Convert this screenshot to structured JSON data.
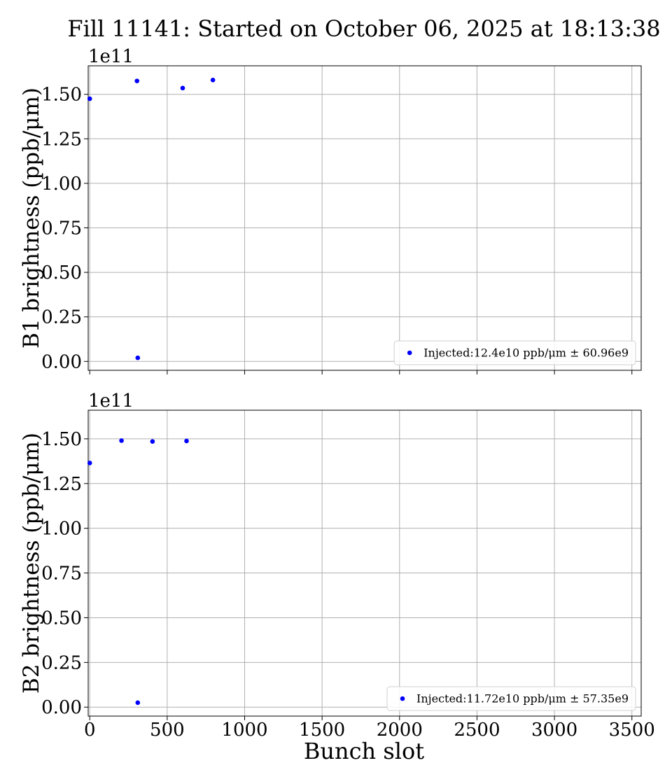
{
  "title": "Fill 11141: Started on October 06, 2025 at 18:13:38",
  "xlabel": "Bunch slot",
  "colors": {
    "marker": "#0000ff",
    "grid": "#b0b0b0",
    "axis": "#000000"
  },
  "chart_data": [
    {
      "type": "scatter",
      "ylabel": "B1 brightness (ppb/μm)",
      "offset_label": "1e11",
      "xlim": [
        -10,
        3560
      ],
      "ylim": [
        -0.05,
        1.66
      ],
      "x_ticks": [
        0,
        500,
        1000,
        1500,
        2000,
        2500,
        3000,
        3500
      ],
      "x_tick_labels_visible": false,
      "y_ticks": [
        0.0,
        0.25,
        0.5,
        0.75,
        1.0,
        1.25,
        1.5
      ],
      "y_tick_labels": [
        "0.00",
        "0.25",
        "0.50",
        "0.75",
        "1.00",
        "1.25",
        "1.50"
      ],
      "grid": true,
      "legend_position": "lower right",
      "series": [
        {
          "name": "Injected:12.4e10 ppb/μm ± 60.96e9",
          "x": [
            0,
            305,
            310,
            600,
            795
          ],
          "y": [
            1.475,
            1.575,
            0.02,
            1.535,
            1.58
          ]
        }
      ]
    },
    {
      "type": "scatter",
      "ylabel": "B2 brightness (ppb/μm)",
      "offset_label": "1e11",
      "xlim": [
        -10,
        3560
      ],
      "ylim": [
        -0.05,
        1.66
      ],
      "x_ticks": [
        0,
        500,
        1000,
        1500,
        2000,
        2500,
        3000,
        3500
      ],
      "x_tick_labels": [
        "0",
        "500",
        "1000",
        "1500",
        "2000",
        "2500",
        "3000",
        "3500"
      ],
      "x_tick_labels_visible": true,
      "y_ticks": [
        0.0,
        0.25,
        0.5,
        0.75,
        1.0,
        1.25,
        1.5
      ],
      "y_tick_labels": [
        "0.00",
        "0.25",
        "0.50",
        "0.75",
        "1.00",
        "1.25",
        "1.50"
      ],
      "grid": true,
      "legend_position": "lower right",
      "series": [
        {
          "name": "Injected:11.72e10 ppb/μm ± 57.35e9",
          "x": [
            0,
            205,
            405,
            625,
            310
          ],
          "y": [
            1.365,
            1.49,
            1.485,
            1.488,
            0.025
          ]
        }
      ]
    }
  ]
}
